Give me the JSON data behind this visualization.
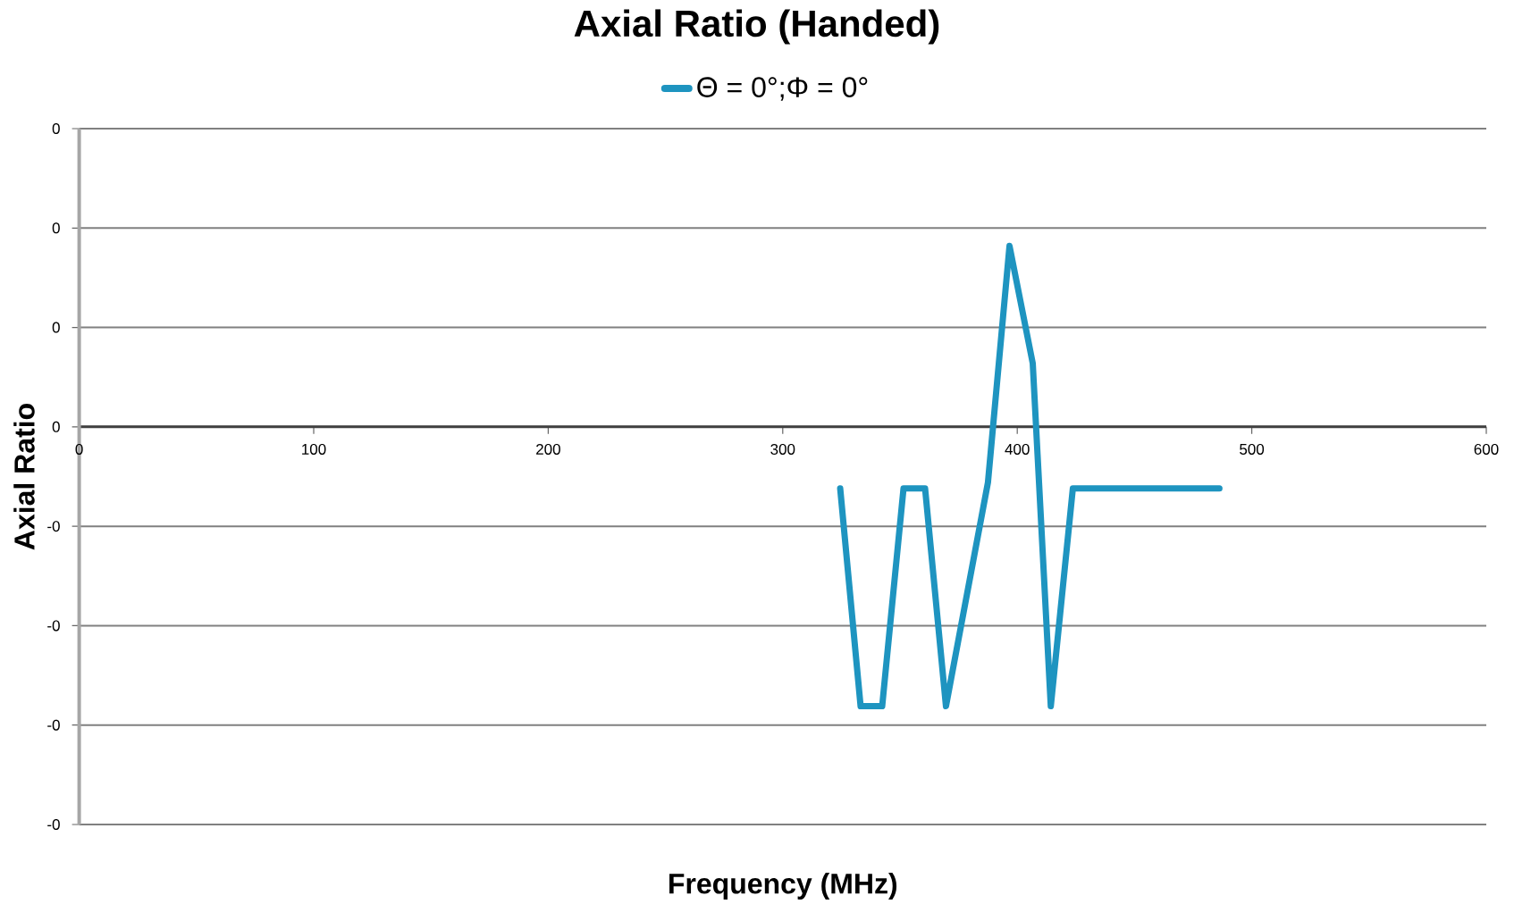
{
  "chart_data": {
    "type": "line",
    "title": "Axial Ratio (Handed)",
    "xlabel": "Frequency (MHz)",
    "ylabel": "Axial Ratio",
    "x": [
      324.5,
      333.2,
      342.4,
      351.5,
      360.7,
      369.6,
      387.5,
      396.7,
      406.6,
      414.3,
      423.7,
      486.2
    ],
    "series": [
      {
        "name": "Θ = 0°;Φ = 0°",
        "color": "#1e94c0",
        "values": [
          -0.062,
          -0.281,
          -0.281,
          -0.062,
          -0.062,
          -0.281,
          -0.056,
          0.182,
          0.064,
          -0.281,
          -0.062,
          -0.062
        ]
      }
    ],
    "xlim": [
      0,
      600
    ],
    "xticks": [
      0,
      100,
      200,
      300,
      400,
      500,
      600
    ],
    "ylim": [
      -0.4,
      0.3
    ],
    "yticks": [
      {
        "value": -0.4,
        "label": "-0"
      },
      {
        "value": -0.3,
        "label": "-0"
      },
      {
        "value": -0.2,
        "label": "-0"
      },
      {
        "value": -0.1,
        "label": "-0"
      },
      {
        "value": 0,
        "label": "0"
      },
      {
        "value": 0.1,
        "label": "0"
      },
      {
        "value": 0.2,
        "label": "0"
      },
      {
        "value": 0.3,
        "label": "0"
      }
    ],
    "grid": "y",
    "legend": "top",
    "marker": "none",
    "line_style": "solid"
  }
}
